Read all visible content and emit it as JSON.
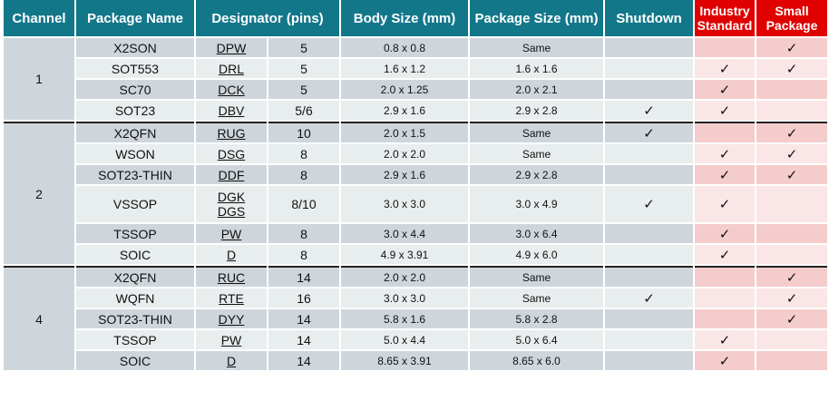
{
  "headers": {
    "channel": "Channel",
    "package_name": "Package Name",
    "designator": "Designator (pins)",
    "body_size": "Body Size (mm)",
    "package_size": "Package Size (mm)",
    "shutdown": "Shutdown",
    "industry_standard": "Industry Standard",
    "small_package": "Small Package"
  },
  "check_glyph": "✓",
  "colors": {
    "header": "#13778a",
    "header_red": "#e00000",
    "row_dark": "#cfd6db",
    "row_light": "#e8edee",
    "red_dark": "#f4cccc",
    "red_light": "#fae6e6"
  },
  "groups": [
    {
      "channel": "1",
      "rows": [
        {
          "name": "X2SON",
          "des": [
            "DPW"
          ],
          "pins": "5",
          "body": "0.8 x 0.8",
          "pkg": "Same",
          "shutdown": false,
          "industry": false,
          "small": true
        },
        {
          "name": "SOT553",
          "des": [
            "DRL"
          ],
          "pins": "5",
          "body": "1.6 x 1.2",
          "pkg": "1.6 x 1.6",
          "shutdown": false,
          "industry": true,
          "small": true
        },
        {
          "name": "SC70",
          "des": [
            "DCK"
          ],
          "pins": "5",
          "body": "2.0 x 1.25",
          "pkg": "2.0 x 2.1",
          "shutdown": false,
          "industry": true,
          "small": false
        },
        {
          "name": "SOT23",
          "des": [
            "DBV"
          ],
          "pins": "5/6",
          "body": "2.9 x 1.6",
          "pkg": "2.9 x 2.8",
          "shutdown": true,
          "industry": true,
          "small": false
        }
      ]
    },
    {
      "channel": "2",
      "rows": [
        {
          "name": "X2QFN",
          "des": [
            "RUG"
          ],
          "pins": "10",
          "body": "2.0 x 1.5",
          "pkg": "Same",
          "shutdown": true,
          "industry": false,
          "small": true
        },
        {
          "name": "WSON",
          "des": [
            "DSG"
          ],
          "pins": "8",
          "body": "2.0 x 2.0",
          "pkg": "Same",
          "shutdown": false,
          "industry": true,
          "small": true
        },
        {
          "name": "SOT23-THIN",
          "des": [
            "DDF"
          ],
          "pins": "8",
          "body": "2.9 x 1.6",
          "pkg": "2.9 x 2.8",
          "shutdown": false,
          "industry": true,
          "small": true
        },
        {
          "name": "VSSOP",
          "des": [
            "DGK",
            "DGS"
          ],
          "pins": "8/10",
          "body": "3.0 x 3.0",
          "pkg": "3.0 x 4.9",
          "shutdown": true,
          "industry": true,
          "small": false
        },
        {
          "name": "TSSOP",
          "des": [
            "PW"
          ],
          "pins": "8",
          "body": "3.0 x 4.4",
          "pkg": "3.0 x 6.4",
          "shutdown": false,
          "industry": true,
          "small": false
        },
        {
          "name": "SOIC",
          "des": [
            "D"
          ],
          "pins": "8",
          "body": "4.9 x 3.91",
          "pkg": "4.9 x 6.0",
          "shutdown": false,
          "industry": true,
          "small": false
        }
      ]
    },
    {
      "channel": "4",
      "rows": [
        {
          "name": "X2QFN",
          "des": [
            "RUC"
          ],
          "pins": "14",
          "body": "2.0 x 2.0",
          "pkg": "Same",
          "shutdown": false,
          "industry": false,
          "small": true
        },
        {
          "name": "WQFN",
          "des": [
            "RTE"
          ],
          "pins": "16",
          "body": "3.0 x 3.0",
          "pkg": "Same",
          "shutdown": true,
          "industry": false,
          "small": true
        },
        {
          "name": "SOT23-THIN",
          "des": [
            "DYY"
          ],
          "pins": "14",
          "body": "5.8 x 1.6",
          "pkg": "5.8 x 2.8",
          "shutdown": false,
          "industry": false,
          "small": true
        },
        {
          "name": "TSSOP",
          "des": [
            "PW"
          ],
          "pins": "14",
          "body": "5.0 x 4.4",
          "pkg": "5.0 x 6.4",
          "shutdown": false,
          "industry": true,
          "small": false
        },
        {
          "name": "SOIC",
          "des": [
            "D"
          ],
          "pins": "14",
          "body": "8.65 x 3.91",
          "pkg": "8.65 x 6.0",
          "shutdown": false,
          "industry": true,
          "small": false
        }
      ]
    }
  ]
}
